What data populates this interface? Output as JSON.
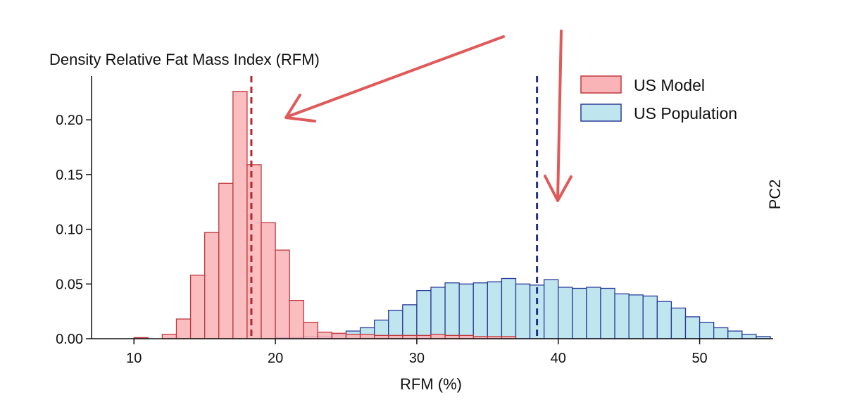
{
  "chart_data": {
    "type": "histogram",
    "title": "Density Relative Fat Mass Index (RFM)",
    "xlabel": "RFM (%)",
    "side_label": "PC2",
    "xlim": [
      7,
      55.2
    ],
    "ylim": [
      0,
      0.24
    ],
    "xticks": [
      {
        "value": 10,
        "label": "10"
      },
      {
        "value": 20,
        "label": "20"
      },
      {
        "value": 30,
        "label": "30"
      },
      {
        "value": 40,
        "label": "40"
      },
      {
        "value": 50,
        "label": "50"
      }
    ],
    "yticks": [
      {
        "value": 0.0,
        "label": "0.00"
      },
      {
        "value": 0.05,
        "label": "0.05"
      },
      {
        "value": 0.1,
        "label": "0.10"
      },
      {
        "value": 0.15,
        "label": "0.15"
      },
      {
        "value": 0.2,
        "label": "0.20"
      }
    ],
    "grid": false,
    "legend_position": "top-right",
    "series": [
      {
        "name": "US Model",
        "fill": "#f9b4b7",
        "stroke": "#c0383e",
        "bins": [
          {
            "x0": 10.0,
            "x1": 11.0,
            "y": 0.001
          },
          {
            "x0": 12.0,
            "x1": 13.0,
            "y": 0.004
          },
          {
            "x0": 13.0,
            "x1": 14.0,
            "y": 0.018
          },
          {
            "x0": 14.0,
            "x1": 15.0,
            "y": 0.058
          },
          {
            "x0": 15.0,
            "x1": 16.0,
            "y": 0.097
          },
          {
            "x0": 16.0,
            "x1": 17.0,
            "y": 0.142
          },
          {
            "x0": 17.0,
            "x1": 18.0,
            "y": 0.226
          },
          {
            "x0": 18.0,
            "x1": 19.0,
            "y": 0.159
          },
          {
            "x0": 19.0,
            "x1": 20.0,
            "y": 0.106
          },
          {
            "x0": 20.0,
            "x1": 21.0,
            "y": 0.081
          },
          {
            "x0": 21.0,
            "x1": 22.0,
            "y": 0.035
          },
          {
            "x0": 22.0,
            "x1": 23.0,
            "y": 0.015
          },
          {
            "x0": 23.0,
            "x1": 24.0,
            "y": 0.006
          },
          {
            "x0": 24.0,
            "x1": 25.0,
            "y": 0.005
          },
          {
            "x0": 25.0,
            "x1": 26.0,
            "y": 0.004
          },
          {
            "x0": 26.0,
            "x1": 27.0,
            "y": 0.004
          },
          {
            "x0": 27.0,
            "x1": 28.0,
            "y": 0.003
          },
          {
            "x0": 28.0,
            "x1": 29.0,
            "y": 0.003
          },
          {
            "x0": 29.0,
            "x1": 30.0,
            "y": 0.003
          },
          {
            "x0": 30.0,
            "x1": 31.0,
            "y": 0.003
          },
          {
            "x0": 31.0,
            "x1": 32.0,
            "y": 0.004
          },
          {
            "x0": 32.0,
            "x1": 33.0,
            "y": 0.003
          },
          {
            "x0": 33.0,
            "x1": 34.0,
            "y": 0.003
          },
          {
            "x0": 34.0,
            "x1": 35.0,
            "y": 0.002
          },
          {
            "x0": 35.0,
            "x1": 36.0,
            "y": 0.002
          },
          {
            "x0": 36.0,
            "x1": 37.0,
            "y": 0.002
          }
        ],
        "mean": 18.3
      },
      {
        "name": "US Population",
        "fill": "#bfe6ee",
        "stroke": "#2b3a9a",
        "bins": [
          {
            "x0": 20.0,
            "x1": 21.0,
            "y": 0.001
          },
          {
            "x0": 21.0,
            "x1": 22.0,
            "y": 0.001
          },
          {
            "x0": 22.0,
            "x1": 23.0,
            "y": 0.002
          },
          {
            "x0": 23.0,
            "x1": 24.0,
            "y": 0.002
          },
          {
            "x0": 24.0,
            "x1": 25.0,
            "y": 0.004
          },
          {
            "x0": 25.0,
            "x1": 26.0,
            "y": 0.007
          },
          {
            "x0": 26.0,
            "x1": 27.0,
            "y": 0.01
          },
          {
            "x0": 27.0,
            "x1": 28.0,
            "y": 0.017
          },
          {
            "x0": 28.0,
            "x1": 29.0,
            "y": 0.026
          },
          {
            "x0": 29.0,
            "x1": 30.0,
            "y": 0.031
          },
          {
            "x0": 30.0,
            "x1": 31.0,
            "y": 0.044
          },
          {
            "x0": 31.0,
            "x1": 32.0,
            "y": 0.047
          },
          {
            "x0": 32.0,
            "x1": 33.0,
            "y": 0.051
          },
          {
            "x0": 33.0,
            "x1": 34.0,
            "y": 0.05
          },
          {
            "x0": 34.0,
            "x1": 35.0,
            "y": 0.051
          },
          {
            "x0": 35.0,
            "x1": 36.0,
            "y": 0.052
          },
          {
            "x0": 36.0,
            "x1": 37.0,
            "y": 0.055
          },
          {
            "x0": 37.0,
            "x1": 38.0,
            "y": 0.05
          },
          {
            "x0": 38.0,
            "x1": 39.0,
            "y": 0.049
          },
          {
            "x0": 39.0,
            "x1": 40.0,
            "y": 0.054
          },
          {
            "x0": 40.0,
            "x1": 41.0,
            "y": 0.047
          },
          {
            "x0": 41.0,
            "x1": 42.0,
            "y": 0.046
          },
          {
            "x0": 42.0,
            "x1": 43.0,
            "y": 0.047
          },
          {
            "x0": 43.0,
            "x1": 44.0,
            "y": 0.046
          },
          {
            "x0": 44.0,
            "x1": 45.0,
            "y": 0.041
          },
          {
            "x0": 45.0,
            "x1": 46.0,
            "y": 0.04
          },
          {
            "x0": 46.0,
            "x1": 47.0,
            "y": 0.039
          },
          {
            "x0": 47.0,
            "x1": 48.0,
            "y": 0.034
          },
          {
            "x0": 48.0,
            "x1": 49.0,
            "y": 0.028
          },
          {
            "x0": 49.0,
            "x1": 50.0,
            "y": 0.02
          },
          {
            "x0": 50.0,
            "x1": 51.0,
            "y": 0.015
          },
          {
            "x0": 51.0,
            "x1": 52.0,
            "y": 0.01
          },
          {
            "x0": 52.0,
            "x1": 53.0,
            "y": 0.007
          },
          {
            "x0": 53.0,
            "x1": 54.0,
            "y": 0.004
          },
          {
            "x0": 54.0,
            "x1": 55.0,
            "y": 0.002
          }
        ],
        "mean": 38.5
      }
    ],
    "annotation_color": "#e05a5a"
  }
}
